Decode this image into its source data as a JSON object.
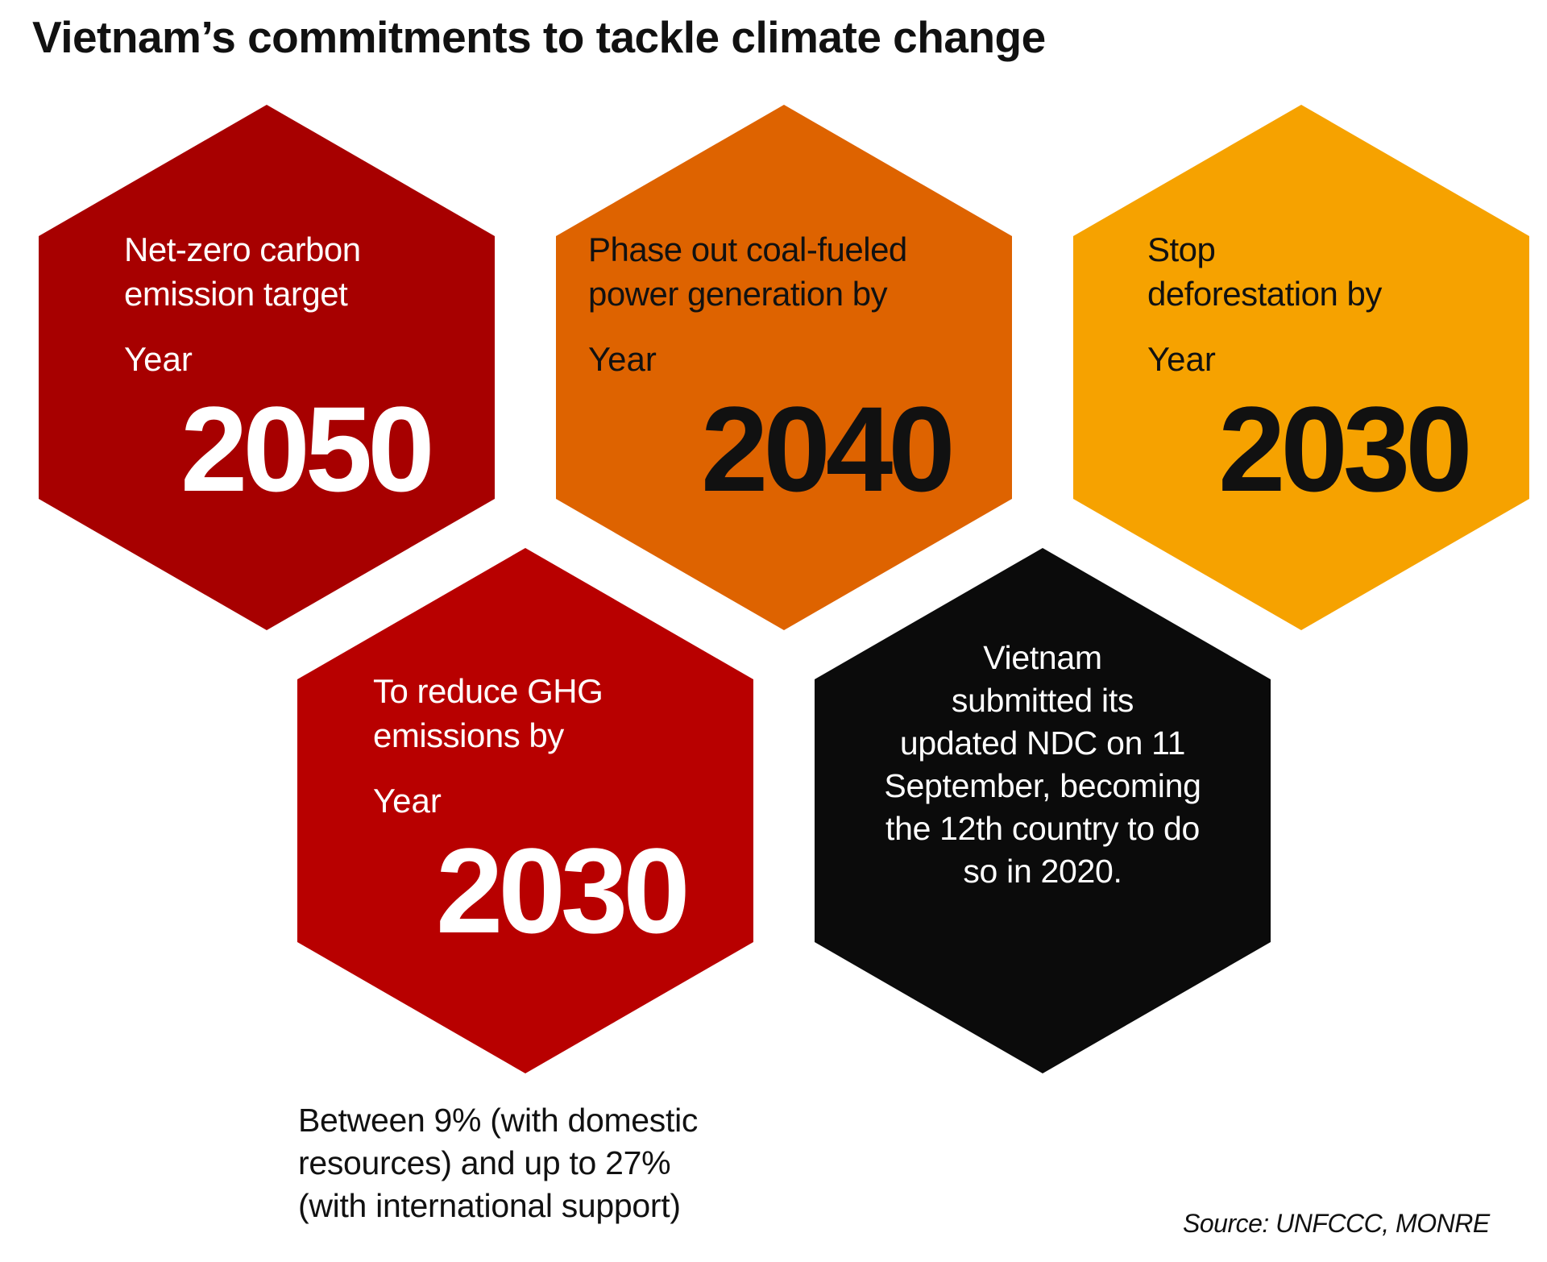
{
  "title": "Vietnam’s commitments to tackle climate change",
  "hexagons": [
    {
      "label_lines": [
        "Net-zero carbon",
        "emission target"
      ],
      "year_label": "Year",
      "year": "2050",
      "color": "#a70000"
    },
    {
      "label_lines": [
        "Phase out coal-fueled",
        "power generation by"
      ],
      "year_label": "Year",
      "year": "2040",
      "color": "#de6300"
    },
    {
      "label_lines": [
        "Stop",
        "deforestation by"
      ],
      "year_label": "Year",
      "year": "2030",
      "color": "#f6a200"
    },
    {
      "label_lines": [
        "To reduce GHG",
        "emissions by"
      ],
      "year_label": "Year",
      "year": "2030",
      "color": "#b80000"
    }
  ],
  "ndc_note": {
    "lines": [
      "Vietnam",
      "submitted its",
      "updated NDC on 11",
      "September, becoming",
      "the 12th country to do",
      "so in 2020."
    ],
    "color": "#0b0b0b"
  },
  "ghg_note_lines": [
    "Between 9% (with domestic",
    "resources) and up to 27%",
    "(with international support)"
  ],
  "source": "Source: UNFCCC, MONRE"
}
